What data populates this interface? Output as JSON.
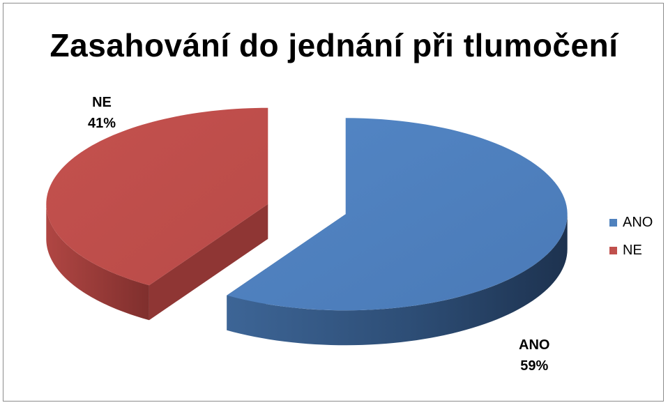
{
  "chart_data": {
    "type": "pie",
    "title": "Zasahování do jednání při tlumočení",
    "categories": [
      "ANO",
      "NE"
    ],
    "values": [
      59,
      41
    ],
    "data_labels": [
      {
        "name": "ANO",
        "value": "59%"
      },
      {
        "name": "NE",
        "value": "41%"
      }
    ],
    "legend": {
      "placement": "right",
      "entries": [
        "ANO",
        "NE"
      ]
    },
    "colors": [
      "#4f81bd",
      "#c0504d"
    ],
    "exploded": true,
    "style": "3d"
  }
}
